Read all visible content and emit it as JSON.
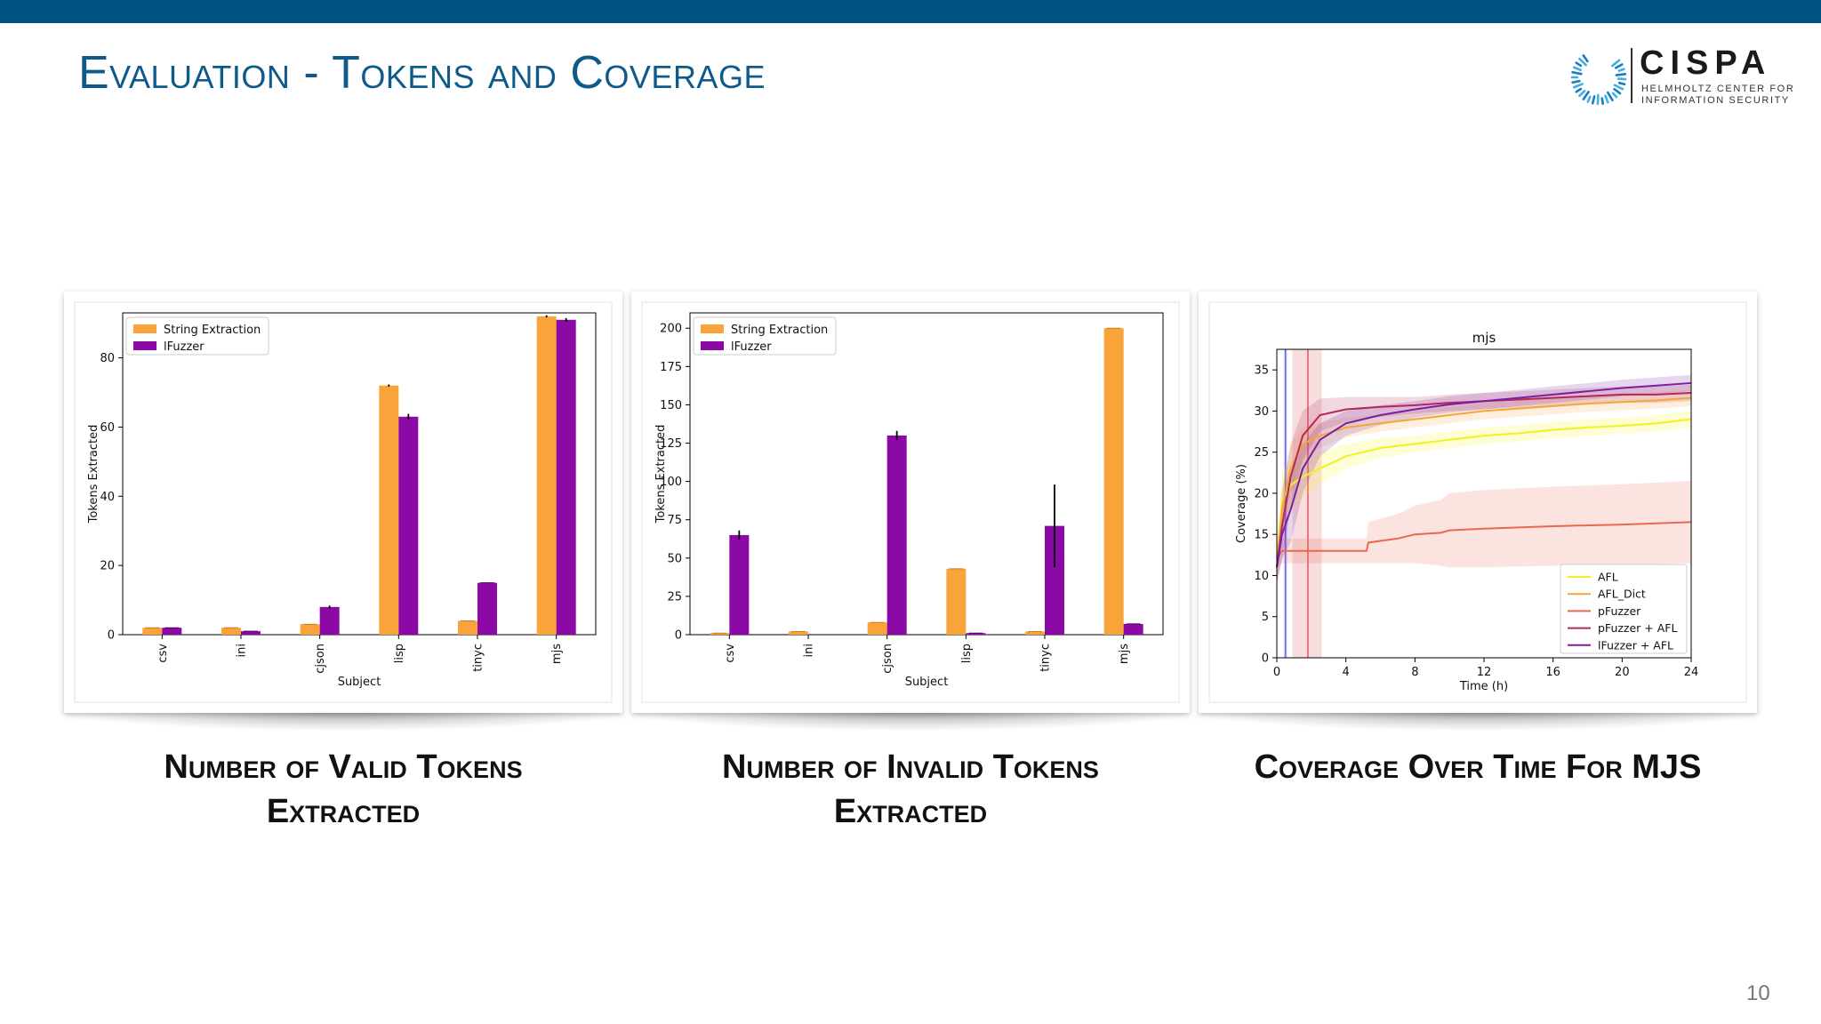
{
  "slide": {
    "title": "Evaluation - Tokens and Coverage",
    "page_number": "10",
    "logo": {
      "name": "CISPA",
      "subtitle_line1": "HELMHOLTZ CENTER FOR",
      "subtitle_line2": "INFORMATION SECURITY"
    },
    "captions": [
      {
        "line1": "Number of Valid Tokens",
        "line2": "Extracted"
      },
      {
        "line1": "Number of Invalid Tokens",
        "line2": "Extracted"
      },
      {
        "line1": "Coverage Over Time For MJS",
        "line2": ""
      }
    ],
    "colors": {
      "topbar": "#005382",
      "title": "#0e5a8a",
      "string_extraction": "#f9a43a",
      "ifuzzer": "#8b0aa5"
    }
  },
  "chart_data": [
    {
      "type": "bar",
      "title": "",
      "xlabel": "Subject",
      "ylabel": "Tokens Extracted",
      "ylim": [
        0,
        93
      ],
      "yticks": [
        0,
        20,
        40,
        60,
        80
      ],
      "categories": [
        "csv",
        "ini",
        "cjson",
        "lisp",
        "tinyc",
        "mjs"
      ],
      "legend_position": "top-left",
      "grid": false,
      "series": [
        {
          "name": "String Extraction",
          "color": "#f9a43a",
          "values": [
            2,
            2,
            3,
            72,
            4,
            92
          ],
          "errors": [
            0,
            0,
            0,
            0.3,
            0,
            0.3
          ]
        },
        {
          "name": "lFuzzer",
          "color": "#8b0aa5",
          "values": [
            2,
            1,
            8,
            63,
            15,
            91
          ],
          "errors": [
            0,
            0,
            0.4,
            0.8,
            0,
            0.5
          ]
        }
      ]
    },
    {
      "type": "bar",
      "title": "",
      "xlabel": "Subject",
      "ylabel": "Tokens Extracted",
      "ylim": [
        0,
        210
      ],
      "yticks": [
        0,
        25,
        50,
        75,
        100,
        125,
        150,
        175,
        200
      ],
      "categories": [
        "csv",
        "ini",
        "cjson",
        "lisp",
        "tinyc",
        "mjs"
      ],
      "legend_position": "top-left",
      "grid": false,
      "series": [
        {
          "name": "String Extraction",
          "color": "#f9a43a",
          "values": [
            1,
            2,
            8,
            43,
            2,
            200
          ],
          "errors": [
            0,
            0,
            0,
            0,
            0,
            0
          ]
        },
        {
          "name": "lFuzzer",
          "color": "#8b0aa5",
          "values": [
            65,
            0,
            130,
            1,
            71,
            7
          ],
          "errors": [
            3,
            0,
            3,
            0,
            27,
            0
          ]
        }
      ]
    },
    {
      "type": "line",
      "title": "mjs",
      "xlabel": "Time (h)",
      "ylabel": "Coverage (%)",
      "xlim": [
        0,
        24
      ],
      "ylim": [
        0,
        37.5
      ],
      "xticks": [
        0,
        4,
        8,
        12,
        16,
        20,
        24
      ],
      "yticks": [
        0,
        5,
        10,
        15,
        20,
        25,
        30,
        35
      ],
      "legend_position": "bottom-right",
      "grid": false,
      "vertical_markers": [
        {
          "x": 0.5,
          "color": "#6a6af0",
          "band": [
            0.4,
            0.6
          ]
        },
        {
          "x": 1.8,
          "color": "#e0606a",
          "band": [
            0.9,
            2.6
          ]
        }
      ],
      "series": [
        {
          "name": "AFL",
          "color": "#f2f21e",
          "x": [
            0,
            0.3,
            0.8,
            1.5,
            2.5,
            4,
            6,
            8,
            10,
            12,
            14,
            16,
            18,
            20,
            22,
            24
          ],
          "y": [
            11,
            19,
            21,
            22,
            23,
            24.5,
            25.5,
            26,
            26.5,
            27,
            27.3,
            27.7,
            28,
            28.2,
            28.5,
            29
          ],
          "band": [
            2,
            3.5,
            3,
            2.5,
            2,
            1.5,
            1.2,
            1,
            1,
            1,
            1,
            1,
            1,
            1,
            1,
            1
          ]
        },
        {
          "name": "AFL_Dict",
          "color": "#f4a63c",
          "x": [
            0,
            0.3,
            0.8,
            1.5,
            2.5,
            4,
            6,
            8,
            10,
            12,
            14,
            16,
            18,
            20,
            22,
            24
          ],
          "y": [
            11,
            18,
            23,
            26,
            27,
            28,
            28.5,
            29,
            29.5,
            30,
            30.3,
            30.6,
            30.9,
            31.1,
            31.3,
            31.6
          ],
          "band": [
            2,
            3,
            3,
            2,
            1.5,
            1.2,
            1,
            1,
            1,
            1,
            1,
            1,
            1,
            1,
            1,
            1
          ]
        },
        {
          "name": "pFuzzer",
          "color": "#e8684e",
          "x": [
            0,
            0.3,
            1,
            2,
            3,
            4.5,
            5.2,
            5.3,
            7,
            8,
            9.5,
            10,
            12,
            16,
            20,
            24
          ],
          "y": [
            12,
            13,
            13,
            13,
            13,
            13,
            13,
            14,
            14.5,
            15,
            15.2,
            15.5,
            15.7,
            16,
            16.2,
            16.5
          ],
          "band": [
            1,
            1.5,
            1.5,
            1.5,
            1.5,
            1.5,
            1.5,
            2.5,
            3,
            3.5,
            4,
            4.5,
            4.7,
            4.8,
            4.9,
            5
          ]
        },
        {
          "name": "pFuzzer + AFL",
          "color": "#b3285a",
          "x": [
            0,
            0.3,
            0.8,
            1.5,
            2.5,
            4,
            6,
            8,
            10,
            12,
            14,
            16,
            18,
            20,
            22,
            24
          ],
          "y": [
            11,
            16,
            22,
            27,
            29.5,
            30.2,
            30.5,
            30.7,
            31,
            31.2,
            31.4,
            31.6,
            31.8,
            32,
            32,
            32.2
          ],
          "band": [
            2,
            4,
            4,
            3,
            2,
            1.5,
            1.2,
            1,
            1,
            1,
            1,
            1,
            1,
            1,
            1,
            1
          ]
        },
        {
          "name": "lFuzzer + AFL",
          "color": "#7b1fa2",
          "x": [
            0,
            0.3,
            0.8,
            1.5,
            2.5,
            4,
            6,
            8,
            10,
            12,
            14,
            16,
            18,
            20,
            22,
            24
          ],
          "y": [
            11,
            15,
            18,
            23,
            26.5,
            28.5,
            29.5,
            30.2,
            30.8,
            31.2,
            31.6,
            32,
            32.4,
            32.8,
            33.1,
            33.4
          ],
          "band": [
            2,
            3,
            4,
            3,
            2,
            1.5,
            1.2,
            1,
            1,
            1,
            1,
            1,
            1,
            1,
            1,
            1
          ]
        }
      ]
    }
  ]
}
